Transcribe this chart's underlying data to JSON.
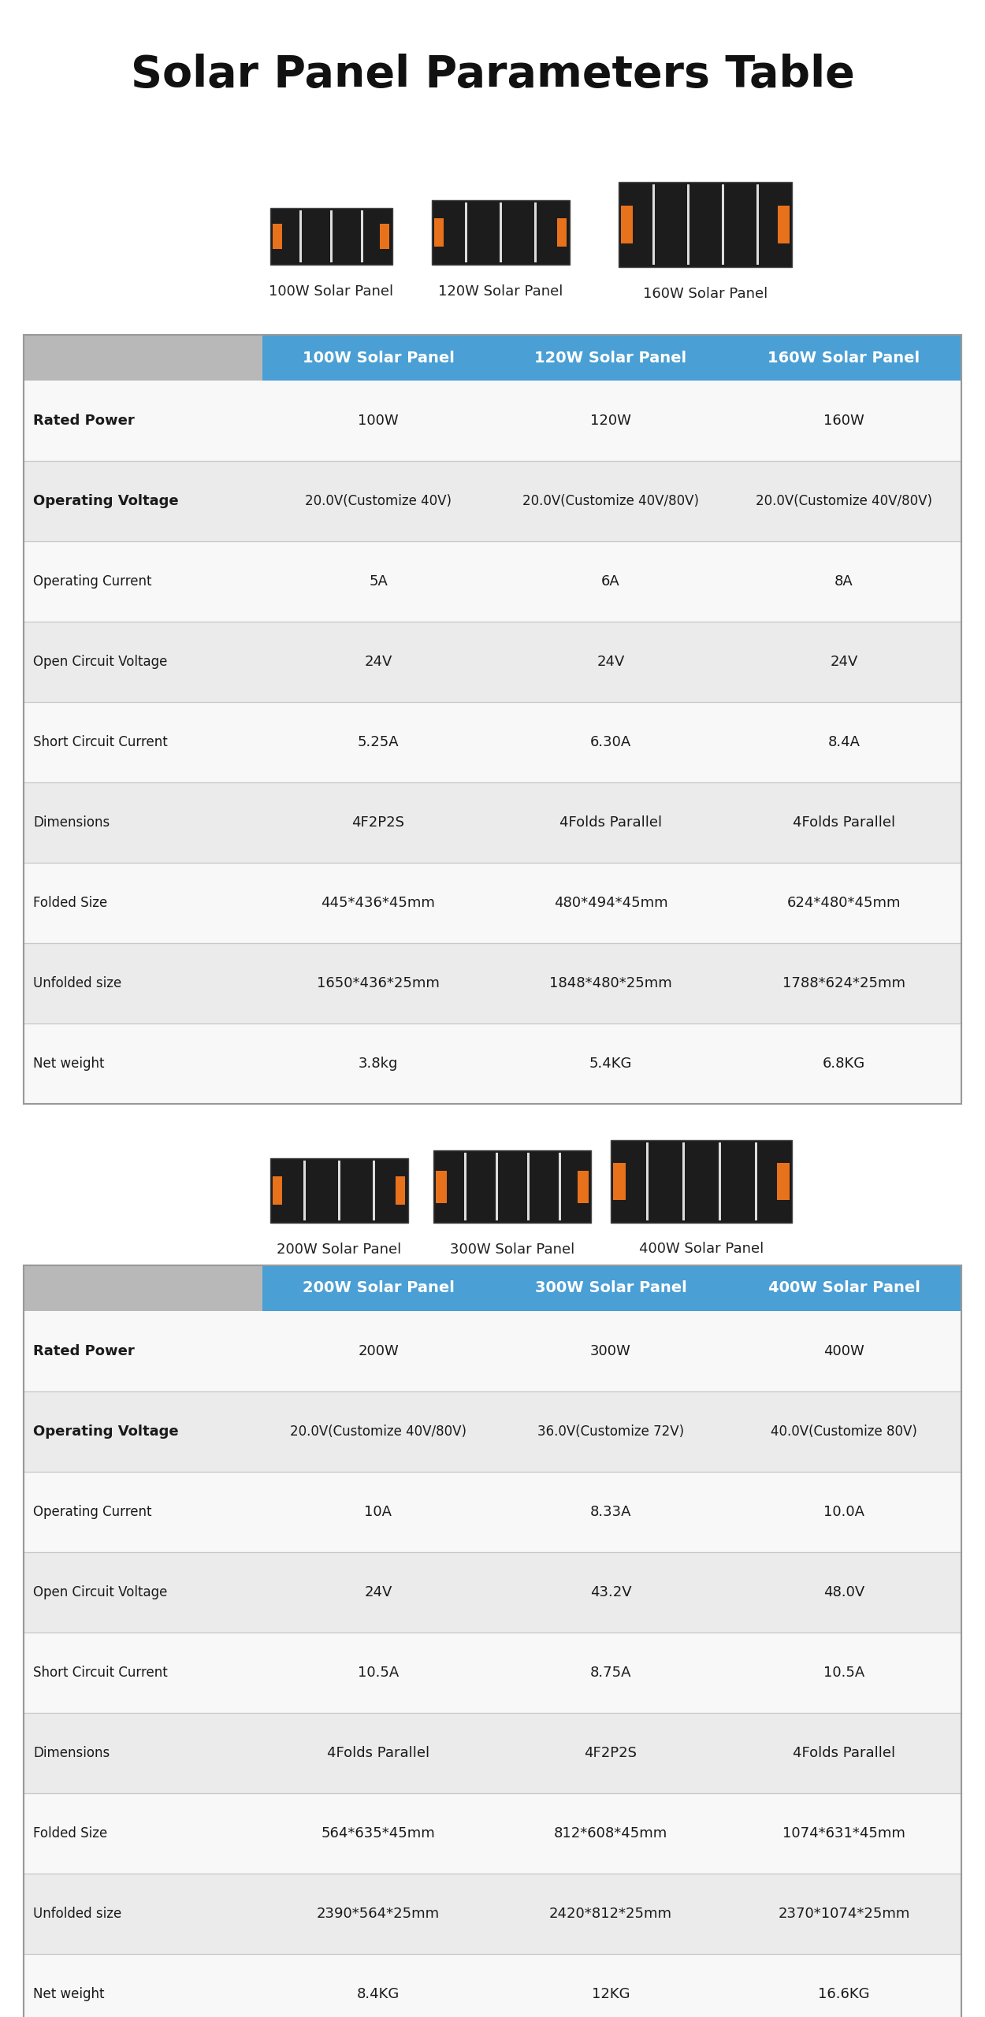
{
  "title": "Solar Panel Parameters Table",
  "background_color": "#ffffff",
  "table_bg_light": "#ebebeb",
  "header_bg": "#4a9fd4",
  "header_text_color": "#ffffff",
  "label_col_bg": "#c8c8c8",
  "row_label_bold": [
    "Rated Power",
    "Operating Voltage"
  ],
  "table1": {
    "headers": [
      "",
      "100W Solar Panel",
      "120W Solar Panel",
      "160W Solar Panel"
    ],
    "panel_labels": [
      "100W Solar Panel",
      "120W Solar Panel",
      "160W Solar Panel"
    ],
    "rows": [
      [
        "Rated Power",
        "100W",
        "120W",
        "160W"
      ],
      [
        "Operating Voltage",
        "20.0V(Customize 40V)",
        "20.0V(Customize 40V/80V)",
        "20.0V(Customize 40V/80V)"
      ],
      [
        "Operating Current",
        "5A",
        "6A",
        "8A"
      ],
      [
        "Open Circuit Voltage",
        "24V",
        "24V",
        "24V"
      ],
      [
        "Short Circuit Current",
        "5.25A",
        "6.30A",
        "8.4A"
      ],
      [
        "Dimensions",
        "4F2P2S",
        "4Folds Parallel",
        "4Folds Parallel"
      ],
      [
        "Folded Size",
        "445*436*45mm",
        "480*494*45mm",
        "624*480*45mm"
      ],
      [
        "Unfolded size",
        "1650*436*25mm",
        "1848*480*25mm",
        "1788*624*25mm"
      ],
      [
        "Net weight",
        "3.8kg",
        "5.4KG",
        "6.8KG"
      ]
    ]
  },
  "table2": {
    "headers": [
      "",
      "200W Solar Panel",
      "300W Solar Panel",
      "400W Solar Panel"
    ],
    "panel_labels": [
      "200W Solar Panel",
      "300W Solar Panel",
      "400W Solar Panel"
    ],
    "rows": [
      [
        "Rated Power",
        "200W",
        "300W",
        "400W"
      ],
      [
        "Operating Voltage",
        "20.0V(Customize 40V/80V)",
        "36.0V(Customize 72V)",
        "40.0V(Customize 80V)"
      ],
      [
        "Operating Current",
        "10A",
        "8.33A",
        "10.0A"
      ],
      [
        "Open Circuit Voltage",
        "24V",
        "43.2V",
        "48.0V"
      ],
      [
        "Short Circuit Current",
        "10.5A",
        "8.75A",
        "10.5A"
      ],
      [
        "Dimensions",
        "4Folds Parallel",
        "4F2P2S",
        "4Folds Parallel"
      ],
      [
        "Folded Size",
        "564*635*45mm",
        "812*608*45mm",
        "1074*631*45mm"
      ],
      [
        "Unfolded size",
        "2390*564*25mm",
        "2420*812*25mm",
        "2370*1074*25mm"
      ],
      [
        "Net weight",
        "8.4KG",
        "12KG",
        "16.6KG"
      ]
    ]
  },
  "ov_rows": {
    "table1": [
      [
        "Operating Voltage",
        "20.0V(",
        "Customize",
        " 40V)",
        "20.0V(",
        "Customize",
        " 40V/80V)",
        "20.0V(",
        "Customize",
        " 40V/80V)"
      ],
      [
        "Operating Voltage",
        "20.0V(",
        "Customize",
        " 40V/80V)",
        "36.0V(",
        "Customize",
        " 72V)",
        "40.0V(",
        "Customize",
        " 80V)"
      ]
    ]
  }
}
